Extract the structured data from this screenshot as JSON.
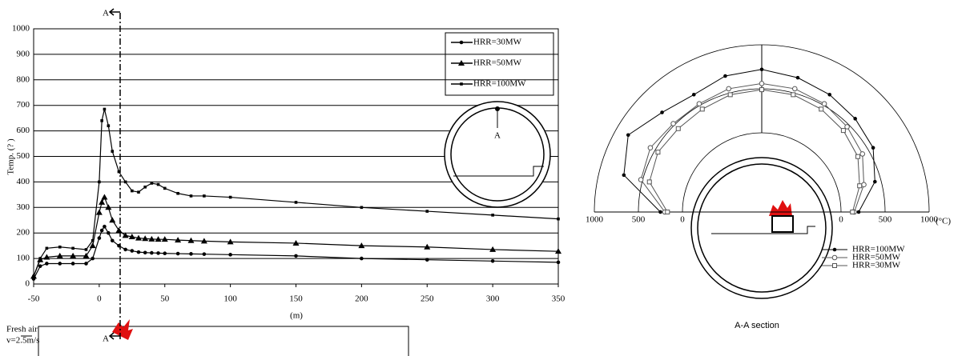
{
  "chart_data": [
    {
      "type": "line",
      "ylabel": "Temp. (? )",
      "xlabel": "(m)",
      "x": [
        -50,
        -45,
        -40,
        -30,
        -20,
        -10,
        -5,
        0,
        2,
        4,
        7,
        10,
        15,
        20,
        25,
        30,
        35,
        40,
        45,
        50,
        60,
        70,
        80,
        100,
        150,
        200,
        250,
        300,
        350
      ],
      "series": [
        {
          "name": "HRR=30MW",
          "color": "#000000",
          "marker": "circle",
          "values": [
            20,
            70,
            80,
            80,
            80,
            80,
            100,
            180,
            210,
            225,
            200,
            170,
            150,
            135,
            130,
            125,
            123,
            122,
            121,
            120,
            119,
            118,
            117,
            115,
            110,
            100,
            95,
            90,
            85
          ]
        },
        {
          "name": "HRR=50MW",
          "color": "#000000",
          "marker": "triangle",
          "values": [
            30,
            95,
            105,
            110,
            110,
            110,
            150,
            280,
            320,
            340,
            300,
            250,
            210,
            190,
            185,
            180,
            178,
            176,
            175,
            175,
            172,
            170,
            168,
            165,
            160,
            150,
            145,
            135,
            128
          ]
        },
        {
          "name": "HRR=100MW",
          "color": "#000000",
          "marker": "square",
          "values": [
            30,
            100,
            140,
            145,
            140,
            135,
            170,
            400,
            640,
            685,
            620,
            520,
            440,
            400,
            365,
            360,
            380,
            395,
            390,
            375,
            355,
            345,
            345,
            340,
            320,
            300,
            285,
            270,
            255
          ]
        }
      ],
      "xlim": [
        -50,
        350
      ],
      "xticks": [
        -50,
        0,
        50,
        100,
        150,
        200,
        250,
        300,
        350
      ],
      "ylim": [
        0,
        1000
      ],
      "yticks": [
        0,
        100,
        200,
        300,
        400,
        500,
        600,
        700,
        800,
        900,
        1000
      ],
      "grid": true,
      "legend": "upper right",
      "annotations": [
        "A",
        "A",
        "A",
        "Fresh air",
        "v=2.5m/s"
      ]
    },
    {
      "type": "polar",
      "title": "A-A section",
      "rlabel": "(°C)",
      "x": [
        0,
        15,
        30,
        45,
        60,
        75,
        90,
        105,
        120,
        135,
        150,
        165,
        180
      ],
      "series": [
        {
          "name": "HRR=100MW",
          "color": "#000000",
          "marker": "filled-circle",
          "values": [
            200,
            430,
            560,
            600,
            640,
            680,
            720,
            700,
            640,
            700,
            850,
            720,
            250
          ]
        },
        {
          "name": "HRR=50MW",
          "color": "#555555",
          "marker": "open-circle",
          "values": [
            150,
            300,
            420,
            470,
            520,
            550,
            560,
            550,
            520,
            520,
            560,
            520,
            200
          ]
        },
        {
          "name": "HRR=30MW",
          "color": "#555555",
          "marker": "open-square",
          "values": [
            130,
            250,
            360,
            410,
            450,
            480,
            490,
            480,
            450,
            440,
            460,
            420,
            170
          ]
        }
      ],
      "rlim": [
        0,
        1000
      ],
      "rticks": [
        0,
        500,
        1000
      ],
      "grid": true
    }
  ]
}
